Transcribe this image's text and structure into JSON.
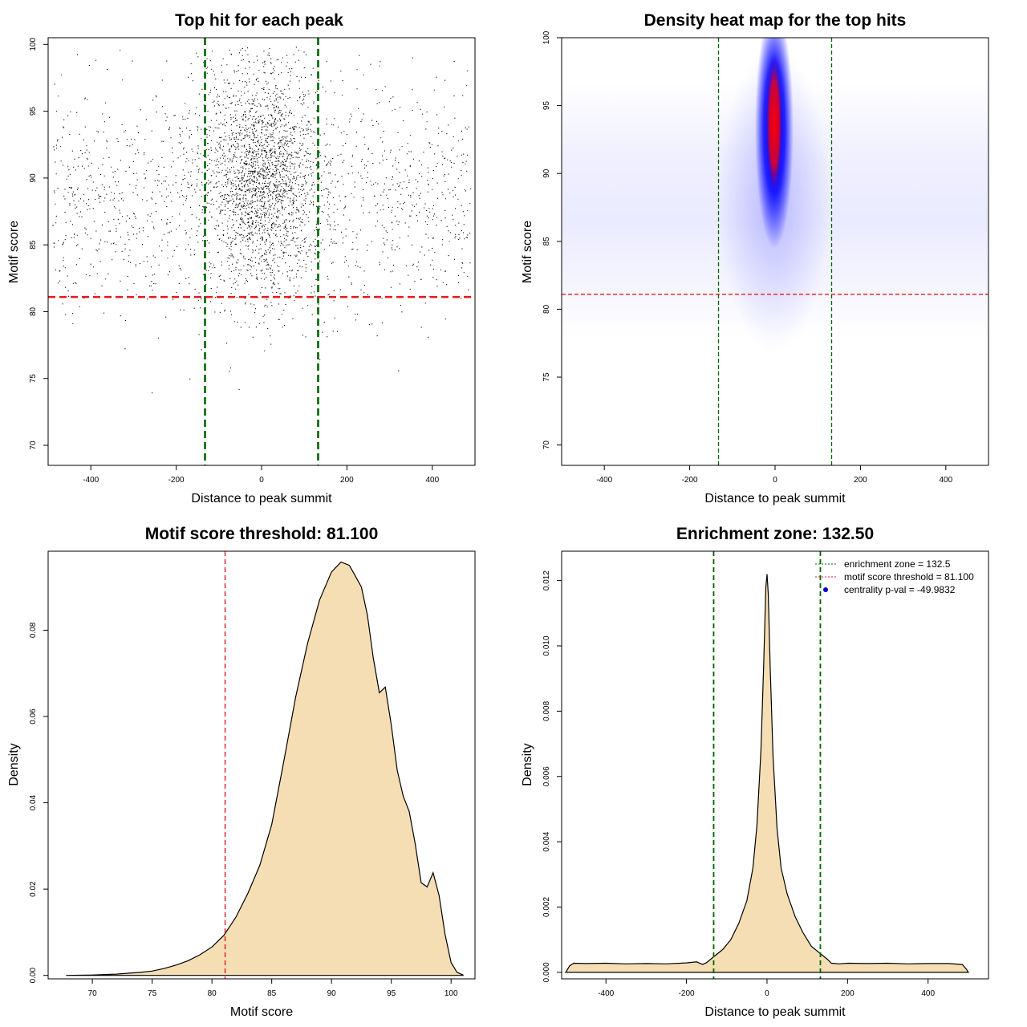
{
  "chart_data": [
    {
      "type": "scatter",
      "title": "Top hit for each peak",
      "xlabel": "Distance to peak summit",
      "ylabel": "Motif score",
      "xlim": [
        -500,
        500
      ],
      "ylim": [
        68.5,
        100.5
      ],
      "xticks": [
        -400,
        -200,
        0,
        200,
        400
      ],
      "yticks": [
        70,
        75,
        80,
        85,
        90,
        95,
        100
      ],
      "point_color": "#000000",
      "reference_lines": {
        "vertical": [
          -132.5,
          132.5
        ],
        "vertical_color": "#006400",
        "horizontal": [
          81.1
        ],
        "horizontal_color": "#e31a1c"
      },
      "approx_point_count": 60000
    },
    {
      "type": "heatmap",
      "title": "Density heat map for the top hits",
      "xlabel": "Distance to peak summit",
      "ylabel": "Motif score",
      "xlim": [
        -500,
        500
      ],
      "ylim": [
        68.5,
        100
      ],
      "xticks": [
        -400,
        -200,
        0,
        200,
        400
      ],
      "yticks": [
        70,
        75,
        80,
        85,
        90,
        95,
        100
      ],
      "colorscale": [
        "#ffffff",
        "#0000ff",
        "#ff0000"
      ],
      "peak_density_location": {
        "x": 0,
        "y": 92.5
      },
      "reference_lines": {
        "vertical": [
          -132.5,
          132.5
        ],
        "vertical_color": "#006400",
        "horizontal": [
          81.1
        ],
        "horizontal_color": "#e31a1c"
      }
    },
    {
      "type": "area",
      "title": "Motif score threshold: 81.100",
      "xlabel": "Motif score",
      "ylabel": "Density",
      "xlim": [
        66.3,
        102
      ],
      "ylim": [
        -0.0008,
        0.0983
      ],
      "xticks": [
        70,
        75,
        80,
        85,
        90,
        95,
        100
      ],
      "yticks": [
        "0.00",
        "0.02",
        "0.04",
        "0.06",
        "0.08"
      ],
      "fill_color": "#f5deb3",
      "x": [
        67.8,
        70,
        72,
        74,
        75,
        76,
        77,
        78,
        79,
        80,
        81,
        82,
        83,
        84,
        85,
        86,
        87,
        88,
        89,
        90,
        90.8,
        91.5,
        92,
        92.5,
        93,
        93.5,
        94,
        94.5,
        95,
        95.5,
        96,
        96.5,
        97,
        97.5,
        98,
        98.5,
        99,
        99.5,
        100,
        100.5,
        101
      ],
      "y": [
        0.0,
        0.0001,
        0.0003,
        0.0007,
        0.001,
        0.0016,
        0.0024,
        0.0034,
        0.0048,
        0.0066,
        0.0093,
        0.0135,
        0.019,
        0.0255,
        0.035,
        0.0495,
        0.0645,
        0.077,
        0.087,
        0.0935,
        0.0958,
        0.095,
        0.0925,
        0.09,
        0.0835,
        0.0735,
        0.0655,
        0.0668,
        0.058,
        0.0475,
        0.0415,
        0.038,
        0.0305,
        0.0215,
        0.0205,
        0.0238,
        0.0185,
        0.0095,
        0.003,
        0.0007,
        0.0001
      ],
      "reference_lines": {
        "vertical": [
          81.1
        ],
        "vertical_color": "#e31a1c"
      }
    },
    {
      "type": "area",
      "title": "Enrichment zone: 132.50",
      "xlabel": "Distance to peak summit",
      "ylabel": "Density",
      "xlim": [
        -510,
        550
      ],
      "ylim": [
        -0.0002,
        0.0129
      ],
      "xticks": [
        -400,
        -200,
        0,
        200,
        400
      ],
      "yticks": [
        "0.000",
        "0.002",
        "0.004",
        "0.006",
        "0.008",
        "0.010",
        "0.012"
      ],
      "fill_color": "#f5deb3",
      "x": [
        -500,
        -490,
        -480,
        -450,
        -400,
        -350,
        -300,
        -250,
        -200,
        -175,
        -160,
        -150,
        -130,
        -110,
        -90,
        -70,
        -50,
        -35,
        -25,
        -15,
        -8,
        -3,
        0,
        3,
        8,
        15,
        25,
        35,
        50,
        70,
        90,
        110,
        130,
        150,
        160,
        180,
        200,
        250,
        300,
        350,
        400,
        450,
        485,
        495,
        500
      ],
      "y": [
        0.0,
        0.0002,
        0.00028,
        0.00027,
        0.00028,
        0.00026,
        0.00027,
        0.00026,
        0.00029,
        0.00032,
        0.00024,
        0.0003,
        0.0005,
        0.0007,
        0.001,
        0.0015,
        0.0022,
        0.0032,
        0.0045,
        0.0068,
        0.0095,
        0.0118,
        0.0122,
        0.0116,
        0.0093,
        0.0066,
        0.0044,
        0.0032,
        0.0024,
        0.0017,
        0.0012,
        0.0008,
        0.0006,
        0.0004,
        0.00028,
        0.00026,
        0.00028,
        0.00027,
        0.00028,
        0.00026,
        0.00027,
        0.00027,
        0.00024,
        0.0001,
        0.0
      ],
      "reference_lines": {
        "vertical": [
          -132.5,
          132.5
        ],
        "vertical_color": "#006400"
      },
      "legend": {
        "position": "top-right",
        "entries": [
          {
            "label": "enrichment zone = 132.5",
            "style": "dotted",
            "color": "#006400"
          },
          {
            "label": "motif score threshold = 81.100",
            "style": "dotted",
            "color": "#e31a1c"
          },
          {
            "label": "centrality p-val = -49.9832",
            "style": "point",
            "color": "#0000cd"
          }
        ]
      }
    }
  ]
}
